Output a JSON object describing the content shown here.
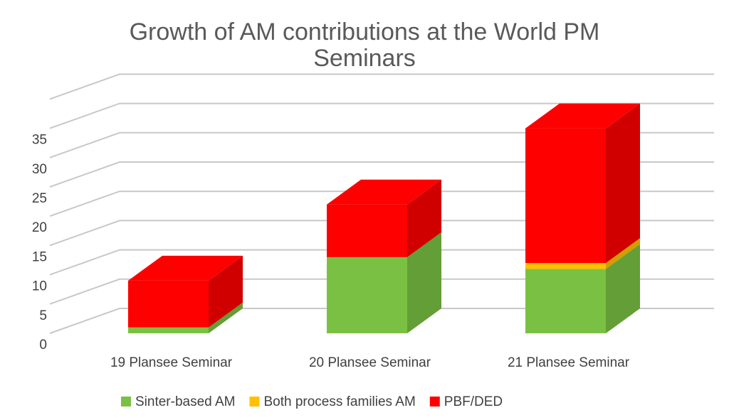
{
  "chart_data": {
    "type": "bar",
    "stacked": true,
    "three_d": true,
    "title_lines": [
      "Growth of AM contributions at the World PM",
      "Seminars"
    ],
    "categories": [
      "19 Plansee Seminar",
      "20 Plansee Seminar",
      "21 Plansee Seminar"
    ],
    "series": [
      {
        "name": "Sinter-based AM",
        "values": [
          1,
          13,
          11
        ],
        "color": "#7ac143"
      },
      {
        "name": "Both process families AM",
        "values": [
          0,
          0,
          1
        ],
        "color": "#ffc000"
      },
      {
        "name": "PBF/DED",
        "values": [
          8,
          9,
          23
        ],
        "color": "#ff0000"
      }
    ],
    "yticks": [
      "0",
      "5",
      "10",
      "15",
      "20",
      "25",
      "30",
      "35"
    ],
    "ylim": [
      0,
      40
    ],
    "grid": true,
    "legend_position": "bottom"
  }
}
